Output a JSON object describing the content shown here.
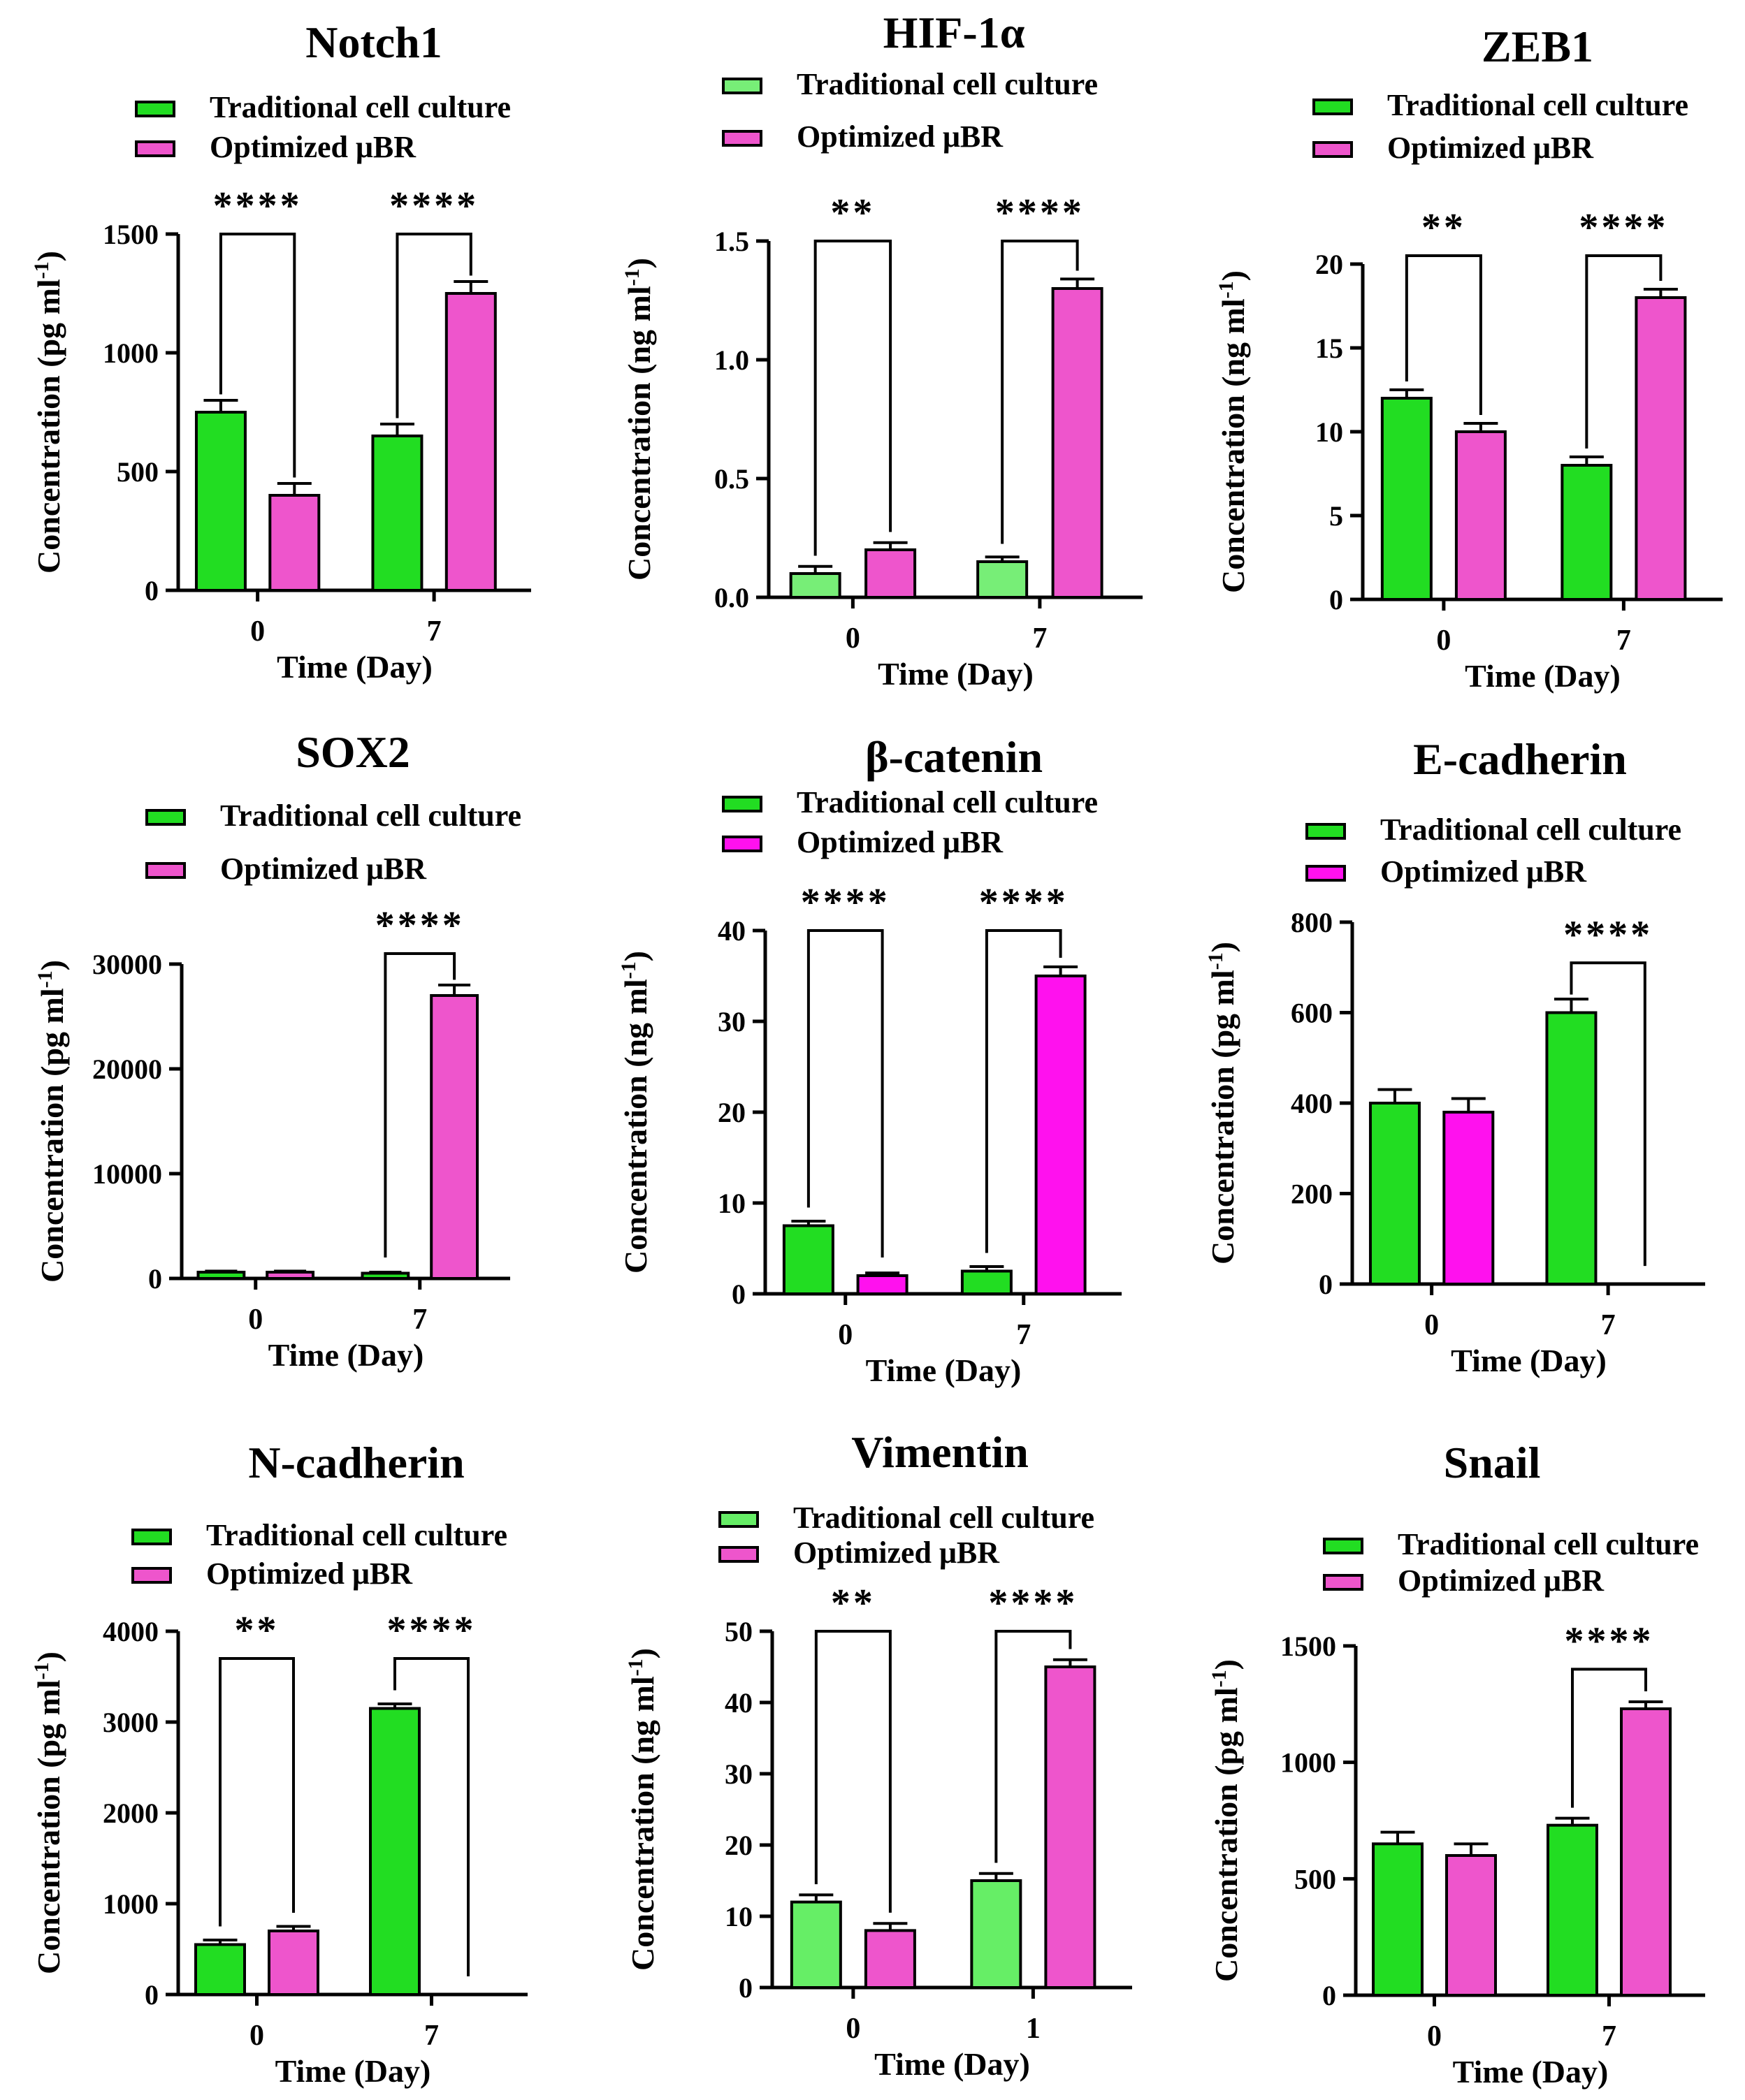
{
  "chart_data": [
    {
      "type": "bar",
      "title": "Notch1",
      "xlabel": "Time (Day)",
      "ylabel": "Concentration (pg ml-1)",
      "categories": [
        "0",
        "7"
      ],
      "ylim": [
        0,
        1500
      ],
      "yticks": [
        0,
        500,
        1000,
        1500
      ],
      "series": [
        {
          "name": "Traditional cell culture",
          "color": "#22dd22",
          "values": [
            750,
            650
          ],
          "errors": [
            50,
            50
          ]
        },
        {
          "name": "Optimized μBR",
          "color": "#ee55cc",
          "values": [
            400,
            1250
          ],
          "errors": [
            50,
            50
          ]
        }
      ],
      "significance": [
        {
          "category": "0",
          "label": "****",
          "y": 1500,
          "drop_left": 750,
          "drop_right": 400
        },
        {
          "category": "7",
          "label": "****",
          "y": 1500,
          "drop_left": 650,
          "drop_right": 1250
        }
      ]
    },
    {
      "type": "bar",
      "title": "HIF-1α",
      "xlabel": "Time (Day)",
      "ylabel": "Concentration (ng ml-1)",
      "categories": [
        "0",
        "7"
      ],
      "ylim": [
        0,
        1.5
      ],
      "yticks": [
        0.0,
        0.5,
        1.0,
        1.5
      ],
      "tick_labels": [
        "0.0",
        "0.5",
        "1.0",
        "1.5"
      ],
      "series": [
        {
          "name": "Traditional cell culture",
          "color": "#77ee77",
          "values": [
            0.1,
            0.15
          ],
          "errors": [
            0.03,
            0.02
          ]
        },
        {
          "name": "Optimized μBR",
          "color": "#ee55cc",
          "values": [
            0.2,
            1.3
          ],
          "errors": [
            0.03,
            0.04
          ]
        }
      ],
      "significance": [
        {
          "category": "0",
          "label": "**",
          "y": 1.5,
          "drop_left": 0.1,
          "drop_right": 0.2
        },
        {
          "category": "7",
          "label": "****",
          "y": 1.5,
          "drop_left": 0.15,
          "drop_right": 1.3
        }
      ]
    },
    {
      "type": "bar",
      "title": "ZEB1",
      "xlabel": "Time (Day)",
      "ylabel": "Concentration (ng ml-1)",
      "categories": [
        "0",
        "7"
      ],
      "ylim": [
        0,
        20
      ],
      "yticks": [
        0,
        5,
        10,
        15,
        20
      ],
      "series": [
        {
          "name": "Traditional cell culture",
          "color": "#22dd22",
          "values": [
            12,
            8
          ],
          "errors": [
            0.5,
            0.5
          ]
        },
        {
          "name": "Optimized μBR",
          "color": "#ee55cc",
          "values": [
            10,
            18
          ],
          "errors": [
            0.5,
            0.5
          ]
        }
      ],
      "significance": [
        {
          "category": "0",
          "label": "**",
          "y": 20.5,
          "drop_left": 12,
          "drop_right": 10
        },
        {
          "category": "7",
          "label": "****",
          "y": 20.5,
          "drop_left": 8,
          "drop_right": 18
        }
      ]
    },
    {
      "type": "bar",
      "title": "SOX2",
      "xlabel": "Time (Day)",
      "ylabel": "Concentration (pg ml-1)",
      "categories": [
        "0",
        "7"
      ],
      "ylim": [
        0,
        30000
      ],
      "yticks": [
        0,
        10000,
        20000,
        30000
      ],
      "series": [
        {
          "name": "Traditional cell culture",
          "color": "#22dd22",
          "values": [
            600,
            500
          ],
          "errors": [
            100,
            100
          ]
        },
        {
          "name": "Optimized μBR",
          "color": "#ee55cc",
          "values": [
            600,
            27000
          ],
          "errors": [
            100,
            1000
          ]
        }
      ],
      "significance": [
        {
          "category": "7",
          "label": "****",
          "y": 31000,
          "drop_left": 500,
          "drop_right": 27000
        }
      ]
    },
    {
      "type": "bar",
      "title": "β-catenin",
      "xlabel": "Time (Day)",
      "ylabel": "Concentration (ng ml-1)",
      "categories": [
        "0",
        "7"
      ],
      "ylim": [
        0,
        40
      ],
      "yticks": [
        0,
        10,
        20,
        30,
        40
      ],
      "series": [
        {
          "name": "Traditional cell culture",
          "color": "#22dd22",
          "values": [
            7.5,
            2.5
          ],
          "errors": [
            0.5,
            0.5
          ]
        },
        {
          "name": "Optimized μBR",
          "color": "#ff11ee",
          "values": [
            2,
            35
          ],
          "errors": [
            0.3,
            1
          ]
        }
      ],
      "significance": [
        {
          "category": "0",
          "label": "****",
          "y": 40,
          "drop_left": 7.5,
          "drop_right": 2
        },
        {
          "category": "7",
          "label": "****",
          "y": 40,
          "drop_left": 2.5,
          "drop_right": 35
        }
      ]
    },
    {
      "type": "bar",
      "title": "E-cadherin",
      "xlabel": "Time (Day)",
      "ylabel": "Concentration (pg ml-1)",
      "categories": [
        "0",
        "7"
      ],
      "ylim": [
        0,
        800
      ],
      "yticks": [
        0,
        200,
        400,
        600,
        800
      ],
      "series": [
        {
          "name": "Traditional cell culture",
          "color": "#22dd22",
          "values": [
            400,
            600
          ],
          "errors": [
            30,
            30
          ]
        },
        {
          "name": "Optimized μBR",
          "color": "#ff11ee",
          "values": [
            380,
            0
          ],
          "errors": [
            30,
            0
          ]
        }
      ],
      "significance": [
        {
          "category": "7",
          "label": "****",
          "y": 710,
          "drop_left": 600,
          "drop_right": 0
        }
      ]
    },
    {
      "type": "bar",
      "title": "N-cadherin",
      "xlabel": "Time (Day)",
      "ylabel": "Concentration (pg ml-1)",
      "categories": [
        "0",
        "7"
      ],
      "ylim": [
        0,
        4000
      ],
      "yticks": [
        0,
        1000,
        2000,
        3000,
        4000
      ],
      "series": [
        {
          "name": "Traditional cell culture",
          "color": "#22dd22",
          "values": [
            550,
            3150
          ],
          "errors": [
            50,
            50
          ]
        },
        {
          "name": "Optimized μBR",
          "color": "#ee55cc",
          "values": [
            700,
            0
          ],
          "errors": [
            50,
            0
          ]
        }
      ],
      "significance": [
        {
          "category": "0",
          "label": "**",
          "y": 3700,
          "drop_left": 550,
          "drop_right": 700
        },
        {
          "category": "7",
          "label": "****",
          "y": 3700,
          "drop_left": 3150,
          "drop_right": 0
        }
      ]
    },
    {
      "type": "bar",
      "title": "Vimentin",
      "xlabel": "Time (Day)",
      "ylabel": "Concentration (ng ml-1)",
      "categories": [
        "0",
        "1"
      ],
      "ylim": [
        0,
        50
      ],
      "yticks": [
        0,
        10,
        20,
        30,
        40,
        50
      ],
      "series": [
        {
          "name": "Traditional cell culture",
          "color": "#66ee66",
          "values": [
            12,
            15
          ],
          "errors": [
            1,
            1
          ]
        },
        {
          "name": "Optimized μBR",
          "color": "#ee55cc",
          "values": [
            8,
            45
          ],
          "errors": [
            1,
            1
          ]
        }
      ],
      "significance": [
        {
          "category": "0",
          "label": "**",
          "y": 50,
          "drop_left": 12,
          "drop_right": 8
        },
        {
          "category": "1",
          "label": "****",
          "y": 50,
          "drop_left": 15,
          "drop_right": 45
        }
      ]
    },
    {
      "type": "bar",
      "title": "Snail",
      "xlabel": "Time (Day)",
      "ylabel": "Concentration (pg ml-1)",
      "categories": [
        "0",
        "7"
      ],
      "ylim": [
        0,
        1500
      ],
      "yticks": [
        0,
        500,
        1000,
        1500
      ],
      "series": [
        {
          "name": "Traditional cell culture",
          "color": "#22dd22",
          "values": [
            650,
            730
          ],
          "errors": [
            50,
            30
          ]
        },
        {
          "name": "Optimized μBR",
          "color": "#ee55cc",
          "values": [
            600,
            1230
          ],
          "errors": [
            50,
            30
          ]
        }
      ],
      "significance": [
        {
          "category": "7",
          "label": "****",
          "y": 1400,
          "drop_left": 730,
          "drop_right": 1230
        }
      ]
    }
  ]
}
